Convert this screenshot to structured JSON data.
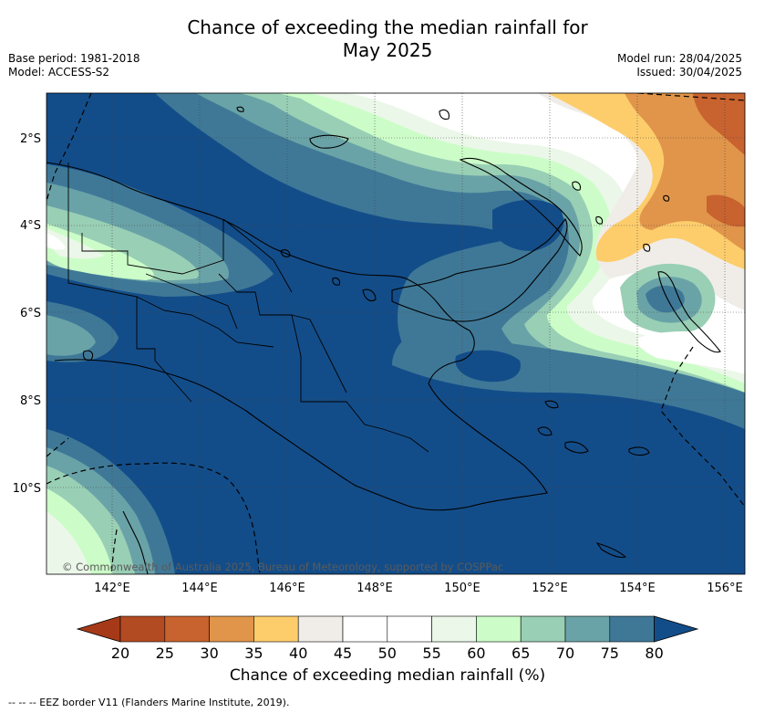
{
  "title_line1": "Chance of exceeding the median rainfall for",
  "title_line2": "May 2025",
  "base_period": "Base period: 1981-2018",
  "model": "Model: ACCESS-S2",
  "model_run": "Model run: 28/04/2025",
  "issued": "Issued: 30/04/2025",
  "copyright": "© Commonwealth of Australia 2025, Bureau of Meteorology, supported by COSPPac",
  "lon_ticks": [
    "142°E",
    "144°E",
    "146°E",
    "148°E",
    "150°E",
    "152°E",
    "154°E",
    "156°E"
  ],
  "lat_ticks": [
    "2°S",
    "4°S",
    "6°S",
    "8°S",
    "10°S"
  ],
  "colorbar": {
    "labels": [
      "20",
      "25",
      "30",
      "35",
      "40",
      "45",
      "50",
      "55",
      "60",
      "65",
      "70",
      "75",
      "80"
    ],
    "colors": [
      "#a63a18",
      "#b24a22",
      "#c8622e",
      "#e0954a",
      "#fdcd6c",
      "#f0ede8",
      "#ffffff",
      "#ffffff",
      "#ebf7e8",
      "#ccfdc8",
      "#99cfb5",
      "#6aa3a7",
      "#3f7897",
      "#134d89"
    ],
    "label": "Chance of exceeding median rainfall (%)"
  },
  "footnote": "--  --  -- EEZ border V11 (Flanders Marine Institute, 2019)."
}
